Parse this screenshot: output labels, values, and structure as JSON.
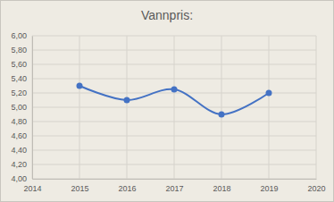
{
  "chart_data": {
    "type": "line",
    "title": "Vannpris:",
    "x": [
      2015,
      2016,
      2017,
      2018,
      2019
    ],
    "values": [
      5.3,
      5.1,
      5.25,
      4.9,
      5.2
    ],
    "color": "#4472c4",
    "marker": "circle",
    "line_style": "smooth",
    "xlim": [
      2014,
      2020
    ],
    "xticks": [
      2014,
      2015,
      2016,
      2017,
      2018,
      2019,
      2020
    ],
    "ylim": [
      4.0,
      6.0
    ],
    "yticks": [
      {
        "value": 4.0,
        "label": "4,00"
      },
      {
        "value": 4.2,
        "label": "4,20"
      },
      {
        "value": 4.4,
        "label": "4,40"
      },
      {
        "value": 4.6,
        "label": "4,60"
      },
      {
        "value": 4.8,
        "label": "4,80"
      },
      {
        "value": 5.0,
        "label": "5,00"
      },
      {
        "value": 5.2,
        "label": "5,20"
      },
      {
        "value": 5.4,
        "label": "5,40"
      },
      {
        "value": 5.6,
        "label": "5,60"
      },
      {
        "value": 5.8,
        "label": "5,80"
      },
      {
        "value": 6.0,
        "label": "6,00"
      }
    ],
    "grid": true
  }
}
